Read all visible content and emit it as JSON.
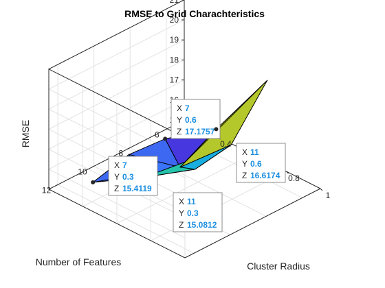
{
  "chart_data": {
    "type": "surface",
    "title": "RMSE to Grid Charachteristics",
    "xlabel": "Cluster Radius",
    "ylabel": "Number of Features",
    "zlabel": "RMSE",
    "x": [
      0.3,
      0.6,
      0.9
    ],
    "y": [
      7,
      9,
      11
    ],
    "z": [
      [
        15.4119,
        17.1757,
        20.9
      ],
      [
        15.55,
        16.2,
        18.6
      ],
      [
        15.0812,
        16.6174,
        18.3
      ]
    ],
    "xlim": [
      0.2,
      1
    ],
    "ylim": [
      5,
      12.5
    ],
    "zlim": [
      15,
      21
    ],
    "xticks": [
      "0.2",
      "0.4",
      "0.6",
      "0.8",
      "1"
    ],
    "yticks": [
      "6",
      "8",
      "10",
      "12"
    ],
    "zticks": [
      "15",
      "16",
      "17",
      "18",
      "19",
      "20",
      "21"
    ],
    "xtick_values": [
      0.2,
      0.4,
      0.6,
      0.8,
      1
    ],
    "ytick_values": [
      6,
      8,
      10,
      12
    ],
    "ztick_values": [
      15,
      16,
      17,
      18,
      19,
      20,
      21
    ],
    "grid": true,
    "facet_colors": [
      "#3d68f2",
      "#b5c82b",
      "#4637de",
      "#18aee0",
      "#3a74fb",
      "#24c3aa"
    ],
    "datatips": [
      {
        "x_label": "X",
        "x_value": "7",
        "y_label": "Y",
        "y_value": "0.6",
        "z_label": "Z",
        "z_value": "17.1757"
      },
      {
        "x_label": "X",
        "x_value": "11",
        "y_label": "Y",
        "y_value": "0.6",
        "z_label": "Z",
        "z_value": "16.6174"
      },
      {
        "x_label": "X",
        "x_value": "7",
        "y_label": "Y",
        "y_value": "0.3",
        "z_label": "Z",
        "z_value": "15.4119"
      },
      {
        "x_label": "X",
        "x_value": "11",
        "y_label": "Y",
        "y_value": "0.3",
        "z_label": "Z",
        "z_value": "15.0812"
      }
    ]
  }
}
